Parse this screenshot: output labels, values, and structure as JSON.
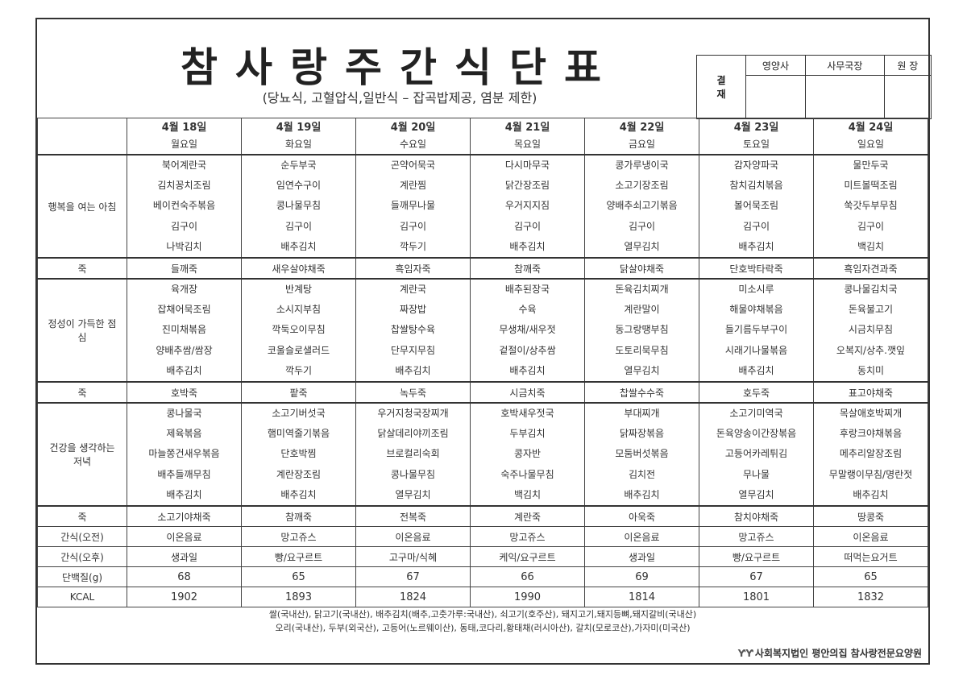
{
  "header": {
    "title": "참사랑주간식단표",
    "subtitle": "(당뇨식, 고혈압식,일반식 – 잡곡밥제공, 염분 제한)"
  },
  "approval": {
    "label": "결\n재",
    "roles": [
      "영양사",
      "사무국장",
      "원 장"
    ]
  },
  "days": [
    {
      "date": "4월 18일",
      "weekday": "월요일"
    },
    {
      "date": "4월 19일",
      "weekday": "화요일"
    },
    {
      "date": "4월 20일",
      "weekday": "수요일"
    },
    {
      "date": "4월 21일",
      "weekday": "목요일"
    },
    {
      "date": "4월 22일",
      "weekday": "금요일"
    },
    {
      "date": "4월 23일",
      "weekday": "토요일"
    },
    {
      "date": "4월 24일",
      "weekday": "일요일"
    }
  ],
  "rows": {
    "breakfast": {
      "label": "행복을 여는 아침",
      "items": [
        [
          "북어계란국",
          "김치꽁치조림",
          "베이컨숙주볶음",
          "김구이",
          "나박김치"
        ],
        [
          "순두부국",
          "임연수구이",
          "콩나물무침",
          "김구이",
          "배추김치"
        ],
        [
          "곤약어묵국",
          "계란찜",
          "들깨무나물",
          "김구이",
          "깍두기"
        ],
        [
          "다시마무국",
          "닭간장조림",
          "우거지지짐",
          "김구이",
          "배추김치"
        ],
        [
          "콩가루냉이국",
          "소고기장조림",
          "양배추쇠고기볶음",
          "김구이",
          "열무김치"
        ],
        [
          "감자양파국",
          "참치김치볶음",
          "볼어묵조림",
          "김구이",
          "배추김치"
        ],
        [
          "물만두국",
          "미트볼떡조림",
          "쑥갓두부무침",
          "김구이",
          "백김치"
        ]
      ]
    },
    "porridge1": {
      "label": "죽",
      "items": [
        "들깨죽",
        "새우살야채죽",
        "흑임자죽",
        "참깨죽",
        "닭살야채죽",
        "단호박타락죽",
        "흑임자견과죽"
      ]
    },
    "lunch": {
      "label": "정성이 가득한 점심",
      "items": [
        [
          "육개장",
          "잡채어묵조림",
          "진미채볶음",
          "양배추쌈/쌈장",
          "배추김치"
        ],
        [
          "반계탕",
          "소시지부침",
          "깍둑오이무침",
          "코울슬로샐러드",
          "깍두기"
        ],
        [
          "계란국",
          "짜장밥",
          "찹쌀탕수육",
          "단무지무침",
          "배추김치"
        ],
        [
          "배추된장국",
          "수육",
          "무생채/새우젓",
          "겉절이/상추쌈",
          "배추김치"
        ],
        [
          "돈육김치찌개",
          "계란말이",
          "동그랑땡부침",
          "도토리묵무침",
          "열무김치"
        ],
        [
          "미소시루",
          "해물야채볶음",
          "들기름두부구이",
          "시래기나물볶음",
          "배추김치"
        ],
        [
          "콩나물김치국",
          "돈육불고기",
          "시금치무침",
          "오복지/상추.깻잎",
          "동치미"
        ]
      ]
    },
    "porridge2": {
      "label": "죽",
      "items": [
        "호박죽",
        "팥죽",
        "녹두죽",
        "시금치죽",
        "찹쌀수수죽",
        "호두죽",
        "표고야채죽"
      ]
    },
    "dinner": {
      "label": "건강을 생각하는 저녁",
      "items": [
        [
          "콩나물국",
          "제육볶음",
          "마늘쫑건새우볶음",
          "배추들깨무침",
          "배추김치"
        ],
        [
          "소고기버섯국",
          "햄미역줄기볶음",
          "단호박찜",
          "계란장조림",
          "배추김치"
        ],
        [
          "우거지청국장찌개",
          "닭살데리야끼조림",
          "브로컬리숙회",
          "콩나물무침",
          "열무김치"
        ],
        [
          "호박새우젓국",
          "두부김치",
          "콩자반",
          "숙주나물무침",
          "백김치"
        ],
        [
          "부대찌개",
          "닭짜장볶음",
          "모둠버섯볶음",
          "김치전",
          "배추김치"
        ],
        [
          "소고기미역국",
          "돈육양송이간장볶음",
          "고등어카레튀김",
          "무나물",
          "열무김치"
        ],
        [
          "목살애호박찌개",
          "후랑크야채볶음",
          "메추리알장조림",
          "무말랭이무침/명란젓",
          "배추김치"
        ]
      ]
    },
    "porridge3": {
      "label": "죽",
      "items": [
        "소고기야채죽",
        "참깨죽",
        "전복죽",
        "계란죽",
        "아욱죽",
        "참치야채죽",
        "땅콩죽"
      ]
    },
    "snack_am": {
      "label": "간식(오전)",
      "items": [
        "이온음료",
        "망고쥬스",
        "이온음료",
        "망고쥬스",
        "이온음료",
        "망고쥬스",
        "이온음료"
      ]
    },
    "snack_pm": {
      "label": "간식(오후)",
      "items": [
        "생과일",
        "빵/요구르트",
        "고구마/식혜",
        "케익/요구르트",
        "생과일",
        "빵/요구르트",
        "떠먹는요거트"
      ]
    },
    "protein": {
      "label": "단백질(g)",
      "items": [
        "68",
        "65",
        "67",
        "66",
        "69",
        "67",
        "65"
      ]
    },
    "kcal": {
      "label": "KCAL",
      "items": [
        "1902",
        "1893",
        "1824",
        "1990",
        "1814",
        "1801",
        "1832"
      ]
    }
  },
  "footer": {
    "origin_line1": "쌀(국내산), 닭고기(국내산), 배추김치(배추,고춧가루:국내산), 쇠고기(호주산), 돼지고기,돼지등뼈,돼지갈비(국내산)",
    "origin_line2": "오리(국내산), 두부(외국산), 고등어(노르웨이산), 동태,코다리,황태채(러시아산), 갈치(모로코산),가자미(미국산)",
    "organization": "사회복지법인 평안의집 참사랑전문요양원"
  }
}
